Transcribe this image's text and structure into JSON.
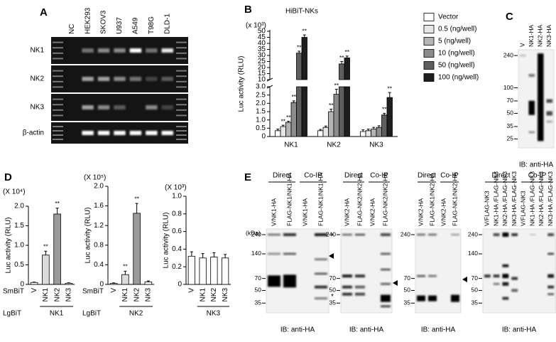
{
  "panels": {
    "A": {
      "letter": "A",
      "lanes": [
        "NC",
        "HEK293",
        "SKOV3",
        "U937",
        "A549",
        "T98G",
        "DLD-1"
      ],
      "rows": [
        "NK1",
        "NK2",
        "NK3",
        "β-actin"
      ]
    },
    "C": {
      "letter": "C",
      "lanes": [
        "V",
        "NK1-HA",
        "NK2-HA",
        "NK3-HA"
      ],
      "markers": [
        240,
        100,
        70,
        50,
        35,
        25
      ],
      "caption": "IB: anti-HA"
    },
    "D": {
      "letter": "D"
    },
    "E": {
      "letter": "E",
      "kda": "(kDa)",
      "blots": [
        {
          "headers": [
            "Direct",
            "Co-IP"
          ],
          "lanes": [
            "V/NK1-HA",
            "FLAG-NK1/NK1-HA",
            "V/NK1-HA",
            "FLAG-NK1/NK1-HA"
          ],
          "markers": [
            240,
            140,
            70,
            50,
            35
          ],
          "annotations": [
            "*",
            "*"
          ],
          "caption": "IB: anti-HA"
        },
        {
          "headers": [
            "Direct",
            "Co-IP"
          ],
          "lanes": [
            "V/NK2-HA",
            "FLAG-NK2/NK2-HA",
            "V/NK2-HA",
            "FLAG-NK2/NK2-HA"
          ],
          "markers": [
            240,
            70,
            50,
            35
          ],
          "caption": "IB: anti-HA"
        },
        {
          "headers": [
            "Direct",
            "Co-IP"
          ],
          "lanes": [
            "V/NK2-HA",
            "FLAG-NK1/NK2-HA",
            "V/NK2-HA",
            "FLAG-NK1/NK2-HA"
          ],
          "markers": [
            240,
            70,
            50,
            35
          ],
          "caption": "IB: anti-HA"
        },
        {
          "headers": [
            "Direct",
            "Co-IP"
          ],
          "lanes": [
            "V/FLAG-NK3",
            "NK1-HA /FLAG-NK3",
            "NK2-HA /FLAG-NK3",
            "NK3-HA /FLAG-NK3",
            "V/FLAG-NK3",
            "NK1-HA /FLAG-NK3",
            "NK2-HA /FLAG-NK3",
            "NK3-HA /FLAG-NK3"
          ],
          "markers": [
            240,
            140,
            70,
            50,
            35
          ],
          "caption": "IB: anti-HA"
        }
      ]
    }
  },
  "chart_data": [
    {
      "type": "bar",
      "panel": "B",
      "title": "HiBiT-NKs",
      "scale_label": "(x 10³)",
      "y_label": "Luc activity (RLU)",
      "categories": [
        "NK1",
        "NK2",
        "NK3"
      ],
      "ylim": [
        0,
        50
      ],
      "axis_break": [
        3,
        10
      ],
      "yticks": [
        0,
        0.5,
        {
          "value": 1,
          "label": "1.0"
        },
        1.5,
        {
          "value": 2,
          "label": "2.0"
        },
        2.5,
        {
          "value": 3,
          "label": "3.0"
        },
        10,
        15,
        20,
        25,
        30,
        35,
        40,
        45,
        50
      ],
      "series": [
        {
          "name": "Vector",
          "color": "#ffffff",
          "values": [
            0.35,
            0.35,
            0.3
          ],
          "errors": [
            0.1,
            0.08,
            0.1
          ],
          "annotations": [
            null,
            null,
            null
          ]
        },
        {
          "name": "0.5 (ng/well)",
          "color": "#e6e6e6",
          "values": [
            0.6,
            0.55,
            0.35
          ],
          "errors": [
            0.08,
            0.08,
            0.1
          ],
          "annotations": [
            "**",
            null,
            null
          ]
        },
        {
          "name": "5 (ng/well)",
          "color": "#b4b4b4",
          "values": [
            0.85,
            1.5,
            0.45
          ],
          "errors": [
            0.07,
            0.15,
            0.1
          ],
          "annotations": [
            "**",
            "**",
            null
          ]
        },
        {
          "name": "10 (ng/well)",
          "color": "#8c8c8c",
          "values": [
            2.05,
            2.55,
            0.55
          ],
          "errors": [
            0.1,
            0.3,
            0.1
          ],
          "annotations": [
            "**",
            "**",
            null
          ]
        },
        {
          "name": "50 (ng/well)",
          "color": "#5e5e5e",
          "values": [
            32,
            23,
            1.3
          ],
          "errors": [
            1.5,
            2,
            0.1
          ],
          "annotations": [
            "**",
            "**",
            "**"
          ]
        },
        {
          "name": "100 (ng/well)",
          "color": "#1e1e1e",
          "values": [
            45,
            28,
            2.35
          ],
          "errors": [
            2,
            1.5,
            0.3
          ],
          "annotations": [
            "**",
            "**",
            "**"
          ]
        }
      ]
    },
    {
      "type": "bar",
      "scale_label": "(X 10⁴)",
      "y_label": "Luc activity (RLU)",
      "categories": [
        "V",
        "NK1",
        "NK2",
        "NK3"
      ],
      "colors": [
        "#ffffff",
        "#dcdcdc",
        "#9a9a9a",
        "#ffffff"
      ],
      "values": [
        0.05,
        0.75,
        1.8,
        0.03
      ],
      "errors": [
        0.01,
        0.1,
        0.15,
        0.01
      ],
      "annotations": [
        null,
        "**",
        "**",
        null
      ],
      "ylim": [
        0,
        2
      ],
      "yticks": [
        0,
        0.5,
        {
          "value": 1,
          "label": "1.0"
        },
        1.5,
        {
          "value": 2,
          "label": "2.0"
        }
      ],
      "row_labels": [
        "SmBiT",
        "LgBiT"
      ],
      "group": "NK1"
    },
    {
      "type": "bar",
      "scale_label": "(X 10⁵)",
      "y_label": "Luc activity (RLU)",
      "categories": [
        "V",
        "NK1",
        "NK2",
        "NK3"
      ],
      "colors": [
        "#ffffff",
        "#dcdcdc",
        "#9a9a9a",
        "#ffffff"
      ],
      "values": [
        0.02,
        0.2,
        1.45,
        0.05
      ],
      "errors": [
        0.01,
        0.07,
        0.2,
        0.02
      ],
      "annotations": [
        null,
        "**",
        "**",
        null
      ],
      "ylim": [
        0,
        2
      ],
      "yticks": [
        0,
        0.4,
        0.8,
        1.2,
        1.6,
        {
          "value": 2,
          "label": "2.0"
        }
      ],
      "row_labels": [
        "SmBiT",
        "LgBiT"
      ],
      "group": "NK2"
    },
    {
      "type": "bar",
      "scale_label": "(X 10³)",
      "y_label": "Luc activity (RLU)",
      "categories": [
        "V",
        "NK1",
        "NK2",
        "NK3"
      ],
      "colors": [
        "#ffffff",
        "#ffffff",
        "#ffffff",
        "#ffffff"
      ],
      "values": [
        0.32,
        0.3,
        0.31,
        0.3
      ],
      "errors": [
        0.05,
        0.05,
        0.05,
        0.04
      ],
      "ylim": [
        0,
        1
      ],
      "yticks": [
        0,
        0.2,
        0.4,
        0.6,
        0.8,
        {
          "value": 1,
          "label": "1.0"
        }
      ],
      "group": "NK3"
    }
  ]
}
